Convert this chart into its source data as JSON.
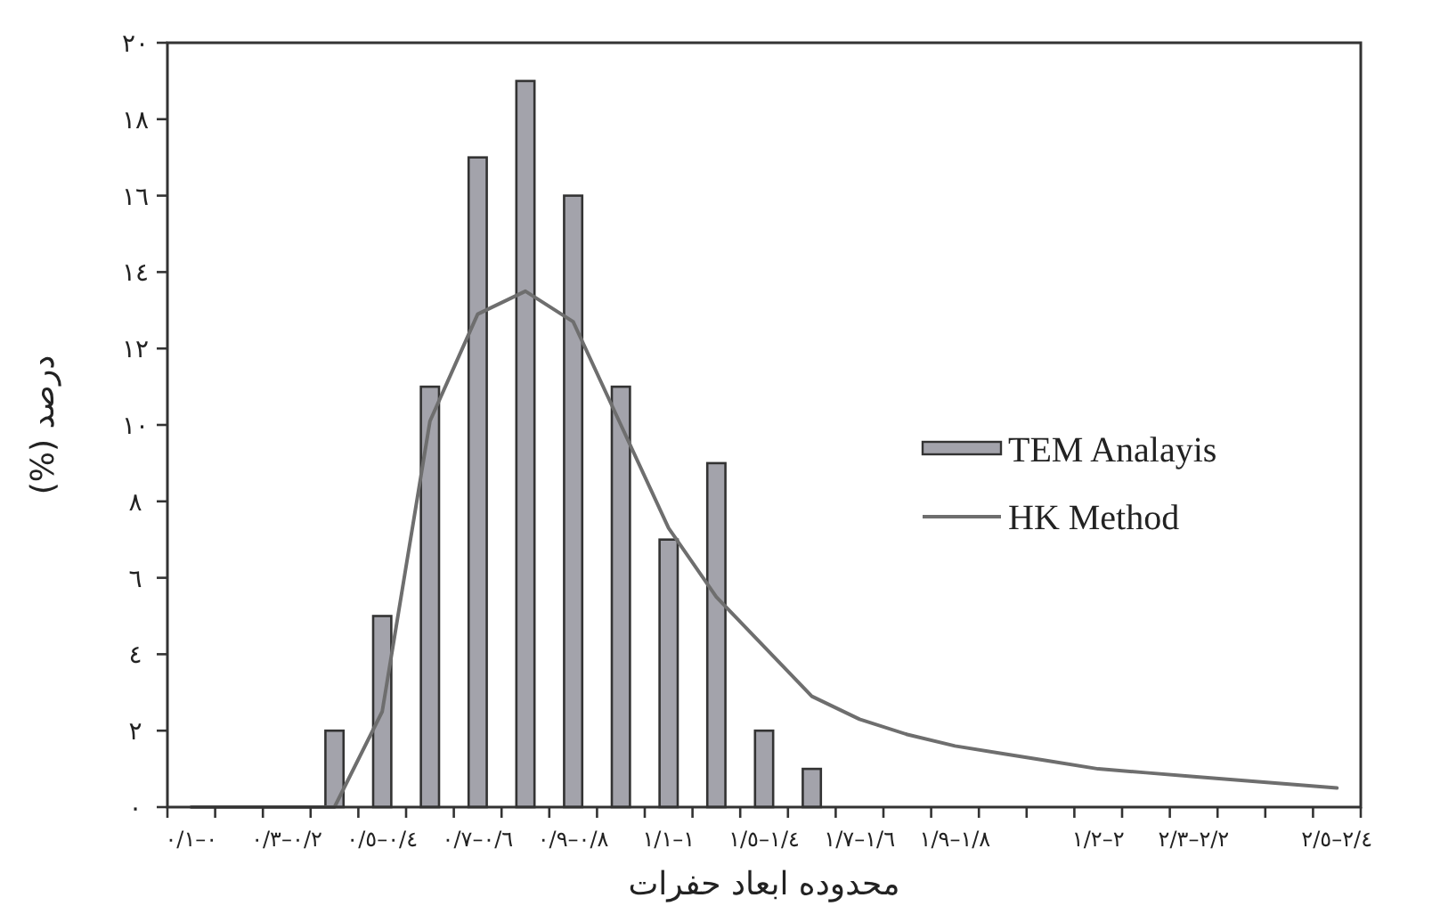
{
  "chart_data": {
    "type": "bar",
    "xlabel": "محدوده ابعاد حفرات",
    "ylabel": "درصد (%)",
    "categories": [
      "٠–٠/١",
      null,
      "٠/٢–٠/٣",
      null,
      "٠/٤–٠/٥",
      null,
      "٠/٦–٠/٧",
      null,
      "٠/٨–٠/٩",
      null,
      "١–١/١",
      null,
      "١/٤–١/٥",
      null,
      "١/٦–١/٧",
      null,
      "١/٨–١/٩",
      null,
      null,
      "٢–١/٢",
      null,
      "٢/٢–٢/٣",
      null,
      null,
      "٢/٤–٢/٥"
    ],
    "series": [
      {
        "name": "TEM Analayis",
        "color": "#a3a3ab",
        "values": [
          0,
          0,
          0,
          2,
          5,
          11,
          17,
          19,
          16,
          11,
          7,
          9,
          2,
          1,
          0,
          0,
          0,
          0,
          0,
          0,
          0,
          0,
          0,
          0,
          0
        ]
      },
      {
        "name": "HK Method",
        "type": "line",
        "color": "#6e6e6e",
        "values": [
          0,
          0,
          0,
          0,
          2.5,
          10.1,
          12.9,
          13.5,
          12.7,
          10.0,
          7.3,
          5.5,
          4.2,
          2.9,
          2.3,
          1.9,
          1.6,
          1.4,
          1.2,
          1.0,
          0.9,
          0.8,
          0.7,
          0.6,
          0.5
        ]
      }
    ],
    "ylim": [
      0,
      20
    ],
    "yticks": [
      {
        "value": 0,
        "label": "٠"
      },
      {
        "value": 2,
        "label": "٢"
      },
      {
        "value": 4,
        "label": "٤"
      },
      {
        "value": 6,
        "label": "٦"
      },
      {
        "value": 8,
        "label": "٨"
      },
      {
        "value": 10,
        "label": "١٠"
      },
      {
        "value": 12,
        "label": "١٢"
      },
      {
        "value": 14,
        "label": "١٤"
      },
      {
        "value": 16,
        "label": "١٦"
      },
      {
        "value": 18,
        "label": "١٨"
      },
      {
        "value": 20,
        "label": "٢٠"
      }
    ],
    "legend": "right"
  }
}
